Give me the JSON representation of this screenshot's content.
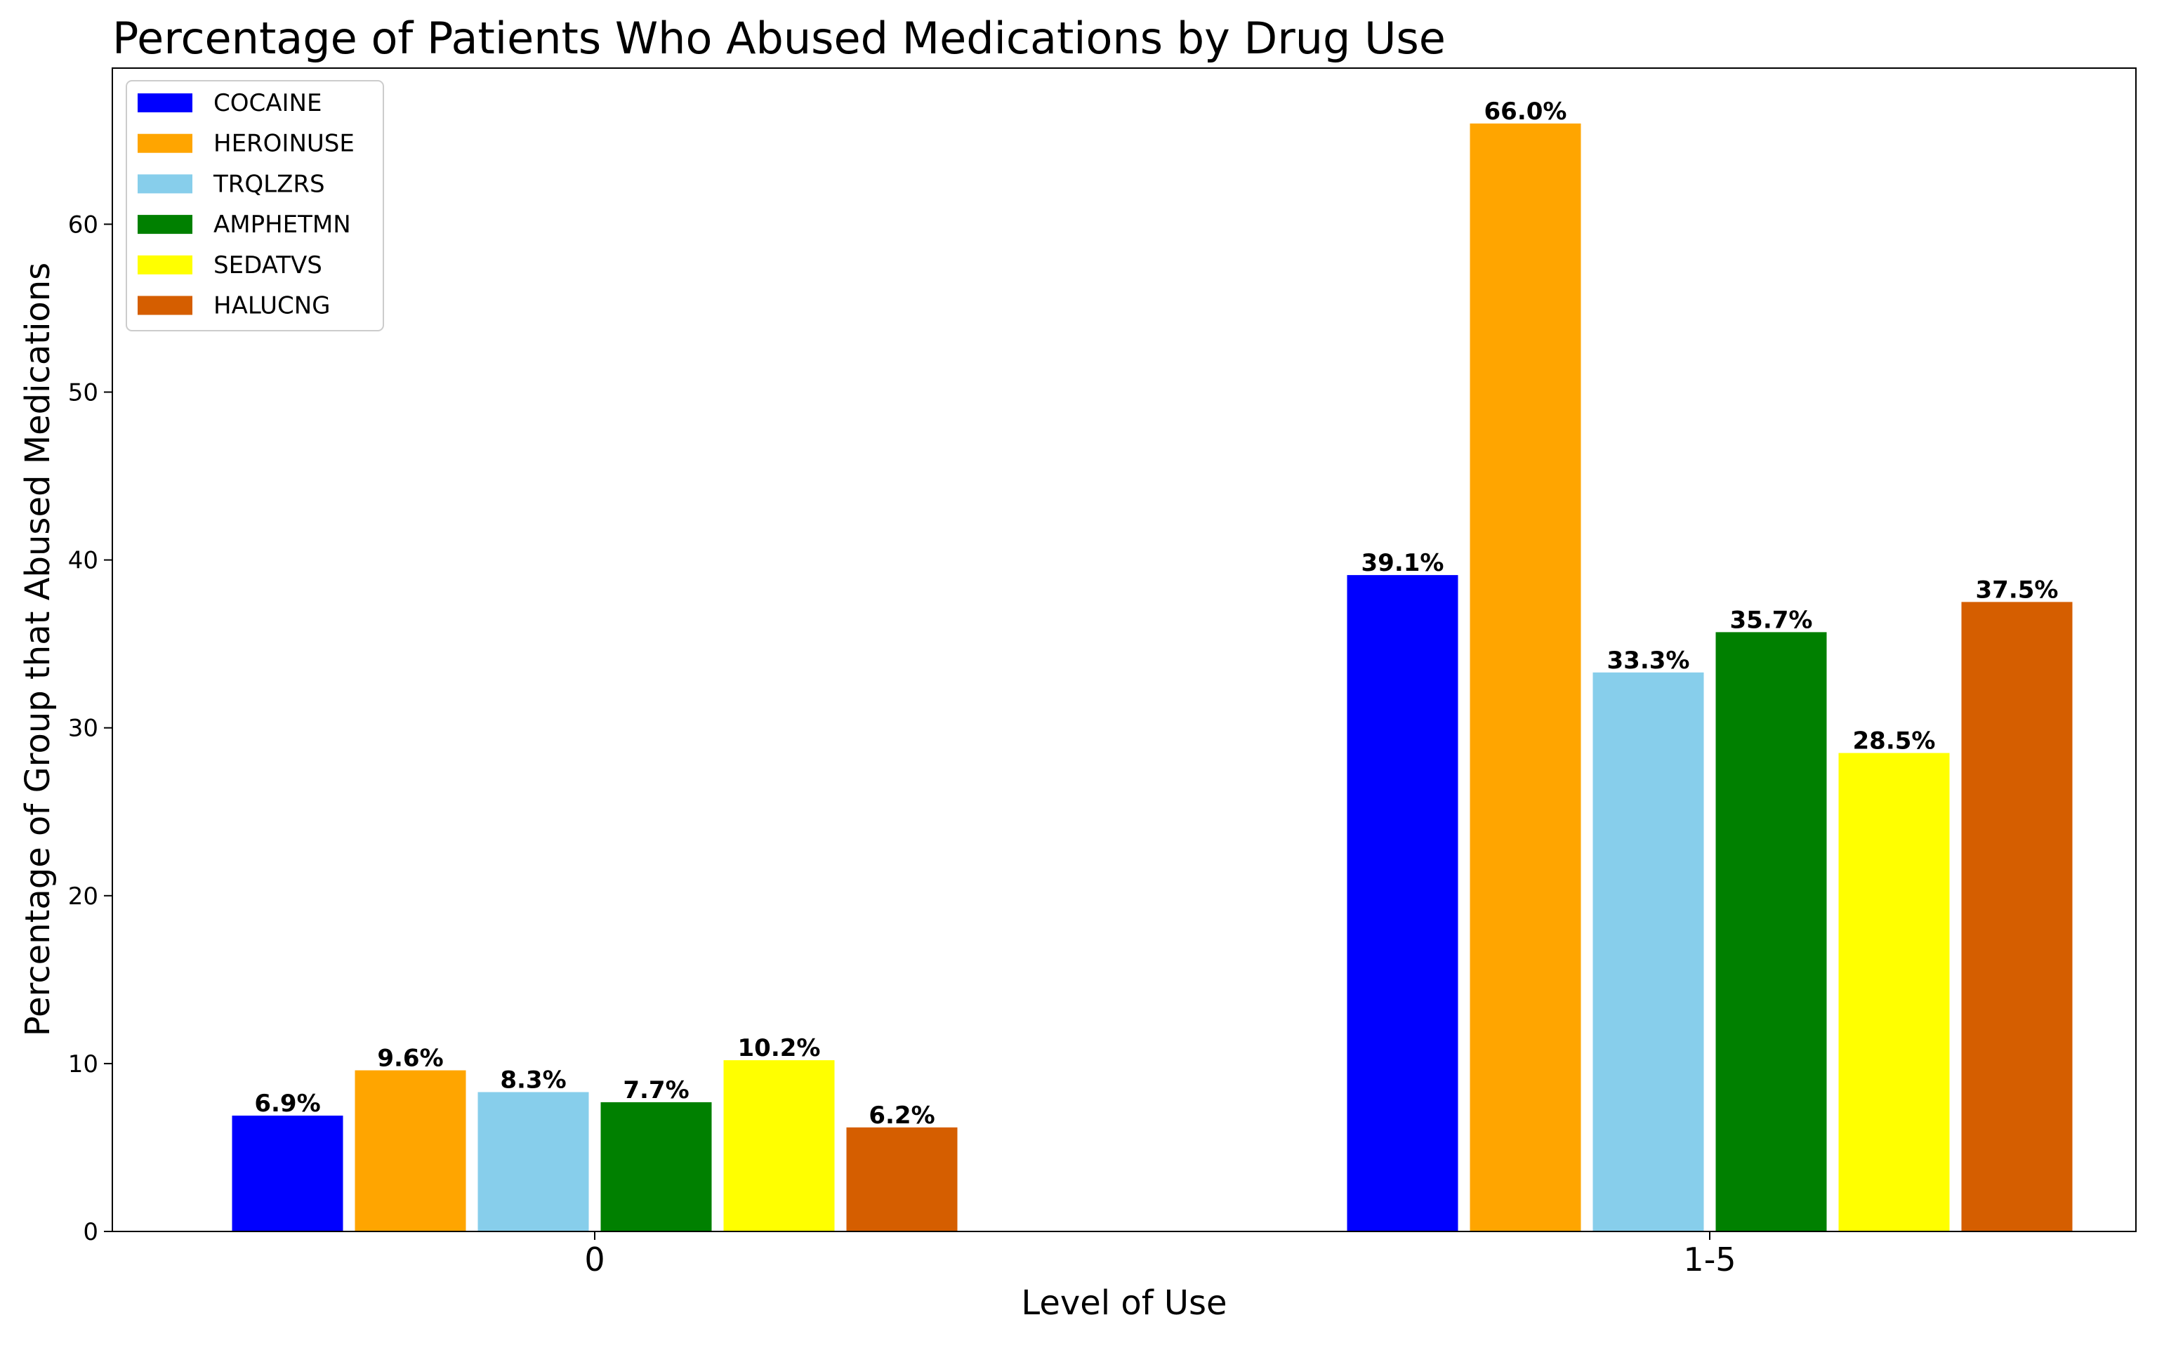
{
  "chart_data": {
    "type": "bar",
    "title": "Percentage of Patients Who Abused Medications by Drug Use",
    "xlabel": "Level of Use",
    "ylabel": "Percentage of Group that Abused Medications",
    "categories": [
      "0",
      "1-5"
    ],
    "series": [
      {
        "name": "COCAINE",
        "color": "#0000ff",
        "values": [
          6.9,
          39.1
        ],
        "labels": [
          "6.9%",
          "39.1%"
        ]
      },
      {
        "name": "HEROINUSE",
        "color": "#ffa500",
        "values": [
          9.6,
          66.0
        ],
        "labels": [
          "9.6%",
          "66.0%"
        ]
      },
      {
        "name": "TRQLZRS",
        "color": "#87ceeb",
        "values": [
          8.3,
          33.3
        ],
        "labels": [
          "8.3%",
          "33.3%"
        ]
      },
      {
        "name": "AMPHETMN",
        "color": "#008000",
        "values": [
          7.7,
          35.7
        ],
        "labels": [
          "7.7%",
          "35.7%"
        ]
      },
      {
        "name": "SEDATVS",
        "color": "#ffff00",
        "values": [
          10.2,
          28.5
        ],
        "labels": [
          "10.2%",
          "28.5%"
        ]
      },
      {
        "name": "HALUCNG",
        "color": "#d55e00",
        "values": [
          6.2,
          37.5
        ],
        "labels": [
          "6.2%",
          "37.5%"
        ]
      }
    ],
    "ylim": [
      0,
      69.3
    ],
    "yticks": [
      0,
      10,
      20,
      30,
      40,
      50,
      60
    ],
    "grid": false,
    "legend": "top-left"
  }
}
